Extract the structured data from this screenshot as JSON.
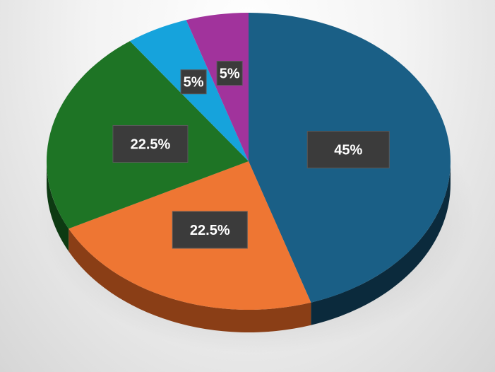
{
  "chart_data": {
    "type": "pie",
    "style": "3d",
    "values": [
      45,
      22.5,
      22.5,
      5,
      5
    ],
    "labels": [
      "45%",
      "22.5%",
      "22.5%",
      "5%",
      "5%"
    ],
    "colors": [
      "#1a5f86",
      "#ee7633",
      "#1e7425",
      "#16a3dc",
      "#a1339c"
    ],
    "side_colors": [
      "#0b2a3c",
      "#8a3e16",
      "#0d3a12",
      "#0b5d80",
      "#5e1a5a"
    ]
  }
}
